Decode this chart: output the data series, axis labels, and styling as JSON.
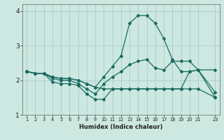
{
  "xlabel": "Humidex (Indice chaleur)",
  "bg_color": "#cce8e0",
  "grid_color": "#aacccc",
  "line_color": "#1a6b60",
  "xlim": [
    0.5,
    23.5
  ],
  "ylim": [
    1.0,
    4.2
  ],
  "xticks": [
    1,
    2,
    3,
    4,
    5,
    6,
    7,
    8,
    9,
    10,
    11,
    12,
    13,
    14,
    15,
    16,
    17,
    18,
    19,
    20,
    21,
    23
  ],
  "yticks": [
    1,
    2,
    3,
    4
  ],
  "line1_x": [
    1,
    2,
    3,
    4,
    5,
    6,
    7,
    8,
    9,
    10,
    11,
    12,
    13,
    14,
    15,
    16,
    17,
    18,
    19,
    20,
    21,
    23
  ],
  "line1_y": [
    2.25,
    2.2,
    2.2,
    1.95,
    1.9,
    1.9,
    1.85,
    1.6,
    1.45,
    1.45,
    1.75,
    1.75,
    1.75,
    1.75,
    1.75,
    1.75,
    1.75,
    1.75,
    1.75,
    1.75,
    1.75,
    1.5
  ],
  "line2_x": [
    1,
    2,
    3,
    4,
    5,
    6,
    7,
    8,
    9,
    10,
    11,
    12,
    13,
    14,
    15,
    16,
    17,
    18,
    19,
    20,
    21,
    23
  ],
  "line2_y": [
    2.25,
    2.2,
    2.2,
    2.05,
    2.0,
    2.0,
    1.9,
    1.75,
    1.6,
    1.9,
    2.1,
    2.25,
    2.45,
    2.55,
    2.6,
    2.35,
    2.3,
    2.55,
    2.55,
    2.55,
    2.3,
    1.65
  ],
  "line3_x": [
    1,
    2,
    3,
    4,
    5,
    6,
    7,
    8,
    9,
    10,
    11,
    12,
    13,
    14,
    15,
    16,
    17,
    18,
    19,
    20,
    21,
    23
  ],
  "line3_y": [
    2.25,
    2.2,
    2.2,
    2.1,
    2.05,
    2.05,
    2.0,
    1.9,
    1.8,
    2.1,
    2.4,
    2.7,
    3.65,
    3.87,
    3.87,
    3.65,
    3.2,
    2.6,
    2.25,
    2.25,
    2.3,
    2.3
  ],
  "line4_x": [
    1,
    2,
    3,
    4,
    5,
    6,
    7,
    8,
    9,
    10,
    11,
    12,
    13,
    14,
    15,
    16,
    17,
    18,
    19,
    20,
    21,
    23
  ],
  "line4_y": [
    2.25,
    2.2,
    2.2,
    2.1,
    2.05,
    2.05,
    2.0,
    1.9,
    1.8,
    1.75,
    1.75,
    1.75,
    1.75,
    1.75,
    1.75,
    1.75,
    1.75,
    1.75,
    1.75,
    2.25,
    2.3,
    1.5
  ]
}
